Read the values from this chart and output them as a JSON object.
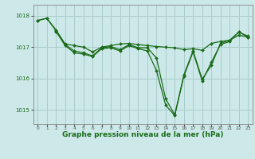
{
  "background_color": "#cce8e8",
  "grid_color": "#aacccc",
  "line_color": "#1a6b1a",
  "marker_color": "#1a6b1a",
  "xlabel": "Graphe pression niveau de la mer (hPa)",
  "xlabel_fontsize": 6.5,
  "ylim": [
    1014.55,
    1018.35
  ],
  "xlim": [
    -0.5,
    23.5
  ],
  "yticks": [
    1015,
    1016,
    1017,
    1018
  ],
  "xticks": [
    0,
    1,
    2,
    3,
    4,
    5,
    6,
    7,
    8,
    9,
    10,
    11,
    12,
    13,
    14,
    15,
    16,
    17,
    18,
    19,
    20,
    21,
    22,
    23
  ],
  "series1_x": [
    0,
    1,
    2,
    3,
    4,
    5,
    6,
    7,
    8,
    9,
    10,
    11,
    12,
    13,
    14,
    15,
    16,
    17,
    18,
    19,
    20,
    21,
    22,
    23
  ],
  "series1_y": [
    1017.85,
    1017.92,
    1017.55,
    1017.1,
    1017.05,
    1017.0,
    1016.85,
    1017.0,
    1017.05,
    1017.1,
    1017.12,
    1017.08,
    1017.05,
    1017.02,
    1017.0,
    1016.98,
    1016.92,
    1016.95,
    1016.9,
    1017.12,
    1017.18,
    1017.22,
    1017.38,
    1017.32
  ],
  "series2_x": [
    0,
    1,
    2,
    3,
    4,
    5,
    6,
    7,
    8,
    9,
    10,
    11,
    12,
    13,
    14,
    15,
    16,
    17,
    18,
    19,
    20,
    21,
    22,
    23
  ],
  "series2_y": [
    1017.85,
    1017.92,
    1017.52,
    1017.08,
    1016.88,
    1016.82,
    1016.72,
    1016.98,
    1017.02,
    1016.92,
    1017.08,
    1016.98,
    1016.98,
    1016.65,
    1015.35,
    1014.85,
    1016.12,
    1016.88,
    1015.98,
    1016.42,
    1017.12,
    1017.22,
    1017.48,
    1017.35
  ],
  "series3_x": [
    2,
    3,
    4,
    5,
    6,
    7,
    8,
    9,
    10,
    11,
    12,
    13,
    14,
    15,
    16,
    17,
    18,
    19,
    20,
    21,
    22,
    23
  ],
  "series3_y": [
    1017.5,
    1017.05,
    1016.82,
    1016.78,
    1016.7,
    1016.95,
    1016.98,
    1016.88,
    1017.05,
    1016.95,
    1016.88,
    1016.25,
    1015.15,
    1014.82,
    1016.08,
    1016.85,
    1015.92,
    1016.52,
    1017.08,
    1017.18,
    1017.48,
    1017.32
  ]
}
